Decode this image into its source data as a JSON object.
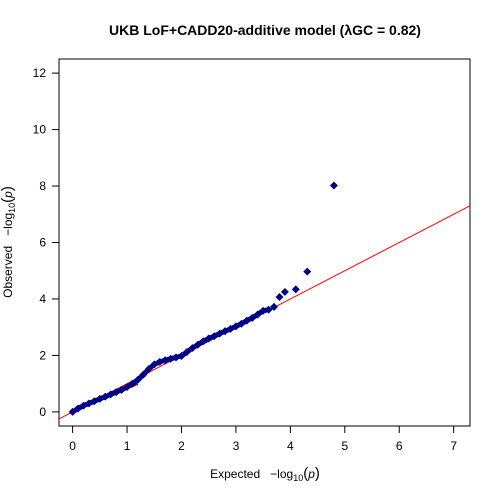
{
  "chart_data": {
    "type": "scatter",
    "title": "UKB LoF+CADD20-additive model (λGC = 0.82)",
    "xlabel": {
      "main": "Expected",
      "prefix": "−log",
      "sub": "10",
      "var": "p"
    },
    "ylabel": {
      "main": "Observed",
      "prefix": "−log",
      "sub": "10",
      "var": "p"
    },
    "xlim": [
      -0.25,
      7.3
    ],
    "ylim": [
      -0.5,
      12.5
    ],
    "xticks": [
      0,
      1,
      2,
      3,
      4,
      5,
      6,
      7
    ],
    "yticks": [
      0,
      2,
      4,
      6,
      8,
      10,
      12
    ],
    "reference_line": {
      "slope": 1,
      "intercept": 0,
      "color": "#ff0000"
    },
    "lambda_fit_line": {
      "slope": 0.82,
      "intercept": 0,
      "color": "#8b0000",
      "x_range": [
        0,
        1.2
      ]
    },
    "point_color": "#00008b",
    "point_outline": "#000080",
    "points": {
      "x": [
        0.0,
        0.1,
        0.2,
        0.3,
        0.4,
        0.5,
        0.6,
        0.7,
        0.8,
        0.9,
        1.0,
        1.1,
        1.2,
        1.3,
        1.4,
        1.5,
        1.6,
        1.7,
        1.8,
        1.9,
        2.0,
        2.1,
        2.2,
        2.3,
        2.4,
        2.5,
        2.6,
        2.7,
        2.8,
        2.9,
        3.0,
        3.1,
        3.2,
        3.3,
        3.4,
        3.5,
        3.6,
        3.7,
        3.8,
        3.9,
        4.1,
        4.31,
        4.8
      ],
      "y": [
        0.0,
        0.12,
        0.22,
        0.3,
        0.38,
        0.46,
        0.54,
        0.62,
        0.7,
        0.78,
        0.88,
        1.0,
        1.14,
        1.32,
        1.52,
        1.68,
        1.77,
        1.83,
        1.88,
        1.93,
        1.98,
        2.12,
        2.26,
        2.38,
        2.5,
        2.6,
        2.68,
        2.77,
        2.86,
        2.94,
        3.03,
        3.12,
        3.23,
        3.33,
        3.45,
        3.58,
        3.62,
        3.72,
        4.07,
        4.25,
        4.34,
        4.97,
        8.02
      ]
    }
  }
}
